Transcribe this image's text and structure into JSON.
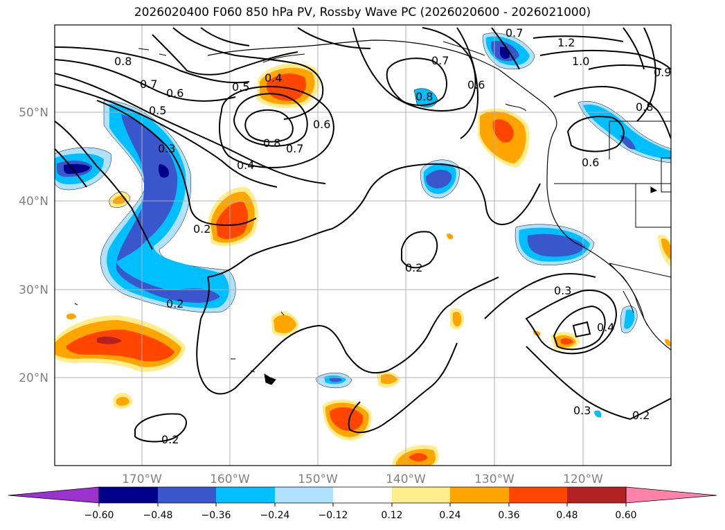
{
  "title": "2026020400 F060 850 hPa PV, Rossby Wave PC (2026020600 - 2026021000)",
  "map": {
    "lon_labels": [
      "170°W",
      "160°W",
      "150°W",
      "140°W",
      "130°W",
      "120°W"
    ],
    "lat_labels": [
      "50°N",
      "40°N",
      "30°N",
      "20°N"
    ],
    "contour_labels": [
      "0.8",
      "0.7",
      "0.6",
      "0.5",
      "0.3",
      "0.4",
      "0.2",
      "0.2",
      "0.5",
      "0.4",
      "0.8",
      "0.7",
      "0.6",
      "0.8",
      "0.7",
      "0.6",
      "0.2",
      "1.2",
      "1.0",
      "0.8",
      "0.6",
      "0.9",
      "0.3",
      "0.4",
      "0.3",
      "0.2",
      "0.2",
      "0.7"
    ]
  },
  "colorbar": {
    "ticks": [
      "−0.60",
      "−0.48",
      "−0.36",
      "−0.24",
      "−0.12",
      "0.12",
      "0.24",
      "0.36",
      "0.48",
      "0.60"
    ],
    "colors": [
      "#9a32cd",
      "#00008b",
      "#3a56cc",
      "#00bfff",
      "#b0e2ff",
      "#ffffff",
      "#ffec8b",
      "#ffa500",
      "#ff4500",
      "#b22222",
      "#ff82ab"
    ]
  }
}
